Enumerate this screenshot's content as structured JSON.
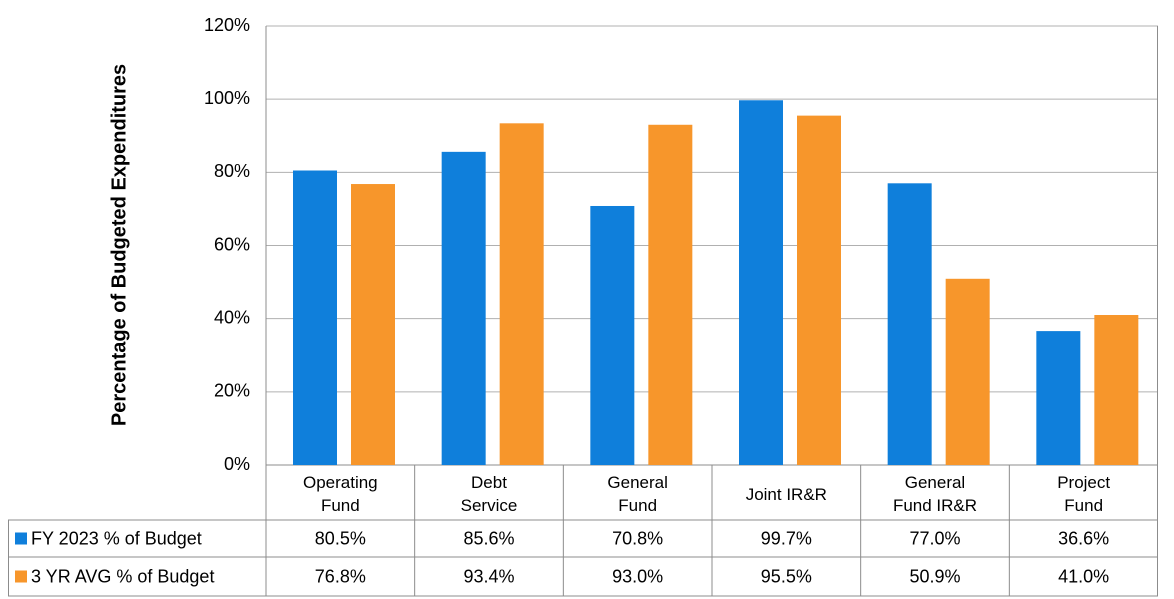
{
  "chart_data": {
    "type": "bar",
    "y_label": "Percentage of Budgeted Expenditures",
    "categories": [
      "Operating Fund",
      "Debt Service",
      "General Fund",
      "Joint IR&R",
      "General Fund IR&R",
      "Project Fund"
    ],
    "series": [
      {
        "name": "FY 2023 % of Budget",
        "color": "#0f7fdb",
        "values": [
          80.5,
          85.6,
          70.8,
          99.7,
          77.0,
          36.6
        ],
        "value_labels": [
          "80.5%",
          "85.6%",
          "70.8%",
          "99.7%",
          "77.0%",
          "36.6%"
        ]
      },
      {
        "name": "3 YR AVG % of Budget",
        "color": "#f7962b",
        "values": [
          76.8,
          93.4,
          93.0,
          95.5,
          50.9,
          41.0
        ],
        "value_labels": [
          "76.8%",
          "93.4%",
          "93.0%",
          "95.5%",
          "50.9%",
          "41.0%"
        ]
      }
    ],
    "ylim": [
      0,
      120
    ],
    "yticks": [
      {
        "value": 0,
        "label": "0%"
      },
      {
        "value": 20,
        "label": "20%"
      },
      {
        "value": 40,
        "label": "40%"
      },
      {
        "value": 60,
        "label": "60%"
      },
      {
        "value": 80,
        "label": "80%"
      },
      {
        "value": 100,
        "label": "100%"
      },
      {
        "value": 120,
        "label": "120%"
      }
    ],
    "grid": true
  }
}
